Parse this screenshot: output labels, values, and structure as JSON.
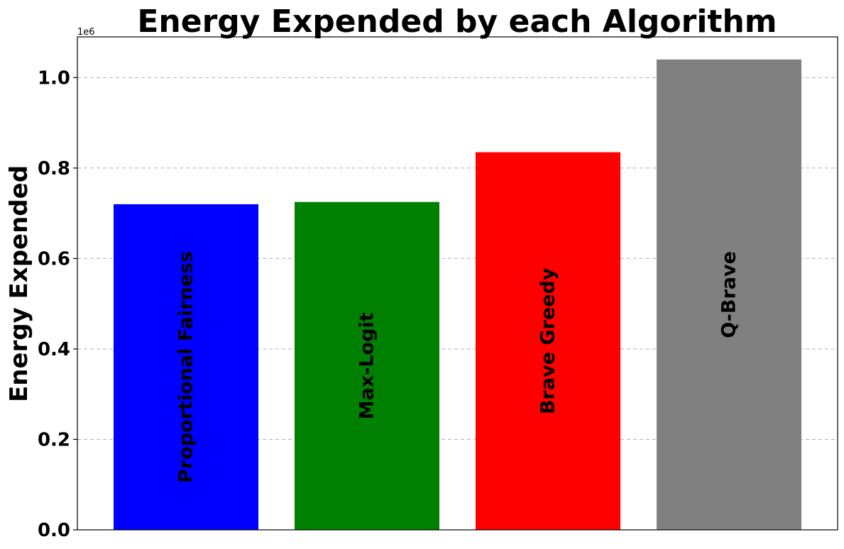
{
  "chart_data": {
    "type": "bar",
    "title": "Energy Expended by each Algorithm",
    "xlabel": "",
    "ylabel": "Energy Expended",
    "offset_label": "1e6",
    "categories": [
      "Proportional Fairness",
      "Max-Logit",
      "Brave Greedy",
      "Q-Brave"
    ],
    "values": [
      0.72,
      0.725,
      0.835,
      1.04
    ],
    "colors": [
      "#0000ff",
      "#008000",
      "#ff0000",
      "#808080"
    ],
    "ylim": [
      0,
      1.09
    ],
    "yticks": [
      0.0,
      0.2,
      0.4,
      0.6,
      0.8,
      1.0
    ],
    "ytick_labels": [
      "0.0",
      "0.2",
      "0.4",
      "0.6",
      "0.8",
      "1.0"
    ],
    "grid": "y-dashed",
    "labels_inside_bars": true
  }
}
